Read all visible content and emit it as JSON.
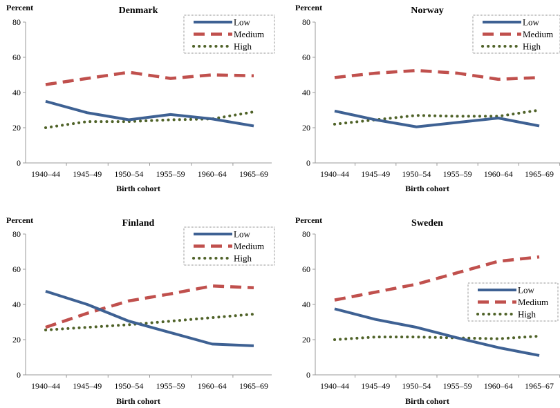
{
  "chart_data": [
    {
      "type": "line",
      "title": "Denmark",
      "ylabel": "Percent",
      "xlabel": "Birth cohort",
      "ylim": [
        0,
        80
      ],
      "yticks": [
        0,
        20,
        40,
        60,
        80
      ],
      "categories": [
        "1940–44",
        "1945–49",
        "1950–54",
        "1955–59",
        "1960–64",
        "1965–69"
      ],
      "legend_position": "top-right",
      "series": [
        {
          "name": "Low",
          "values": [
            35,
            28.5,
            24.5,
            27.5,
            25,
            21
          ]
        },
        {
          "name": "Medium",
          "values": [
            44.5,
            48,
            51.5,
            48,
            50,
            49.5
          ]
        },
        {
          "name": "High",
          "values": [
            20,
            23.5,
            23.5,
            24.5,
            25,
            29
          ]
        }
      ]
    },
    {
      "type": "line",
      "title": "Norway",
      "ylabel": "Percent",
      "xlabel": "Birth cohort",
      "ylim": [
        0,
        80
      ],
      "yticks": [
        0,
        20,
        40,
        60,
        80
      ],
      "categories": [
        "1940–44",
        "1945–49",
        "1950–54",
        "1955–59",
        "1960–64",
        "1965–69"
      ],
      "legend_position": "top-right",
      "series": [
        {
          "name": "Low",
          "values": [
            29.5,
            24.5,
            20.5,
            23,
            25.5,
            21
          ]
        },
        {
          "name": "Medium",
          "values": [
            48.5,
            51,
            52.5,
            51,
            47.5,
            48.5
          ]
        },
        {
          "name": "High",
          "values": [
            22,
            24.5,
            27,
            26.5,
            26.5,
            30
          ]
        }
      ]
    },
    {
      "type": "line",
      "title": "Finland",
      "ylabel": "Percent",
      "xlabel": "Birth cohort",
      "ylim": [
        0,
        80
      ],
      "yticks": [
        0,
        20,
        40,
        60,
        80
      ],
      "categories": [
        "1940–44",
        "1945–49",
        "1950–54",
        "1955–59",
        "1960–64",
        "1965–69"
      ],
      "legend_position": "top-right",
      "series": [
        {
          "name": "Low",
          "values": [
            47.5,
            40,
            30.5,
            24,
            17.5,
            16.5
          ]
        },
        {
          "name": "Medium",
          "values": [
            27,
            35,
            42,
            46,
            50.5,
            49.5
          ]
        },
        {
          "name": "High",
          "values": [
            25.5,
            27,
            28.5,
            30.5,
            32.5,
            34.5
          ]
        }
      ]
    },
    {
      "type": "line",
      "title": "Sweden",
      "ylabel": "Percent",
      "xlabel": "Birth cohort",
      "ylim": [
        0,
        80
      ],
      "yticks": [
        0,
        20,
        40,
        60,
        80
      ],
      "categories": [
        "1940–44",
        "1945–49",
        "1950–54",
        "1955–59",
        "1960–64",
        "1965–67"
      ],
      "legend_position": "right",
      "series": [
        {
          "name": "Low",
          "values": [
            37.5,
            31.5,
            27,
            21,
            15.5,
            11
          ]
        },
        {
          "name": "Medium",
          "values": [
            42.5,
            47,
            51.5,
            58,
            64.5,
            67
          ]
        },
        {
          "name": "High",
          "values": [
            20,
            21.5,
            21.5,
            21,
            20.5,
            22
          ]
        }
      ]
    }
  ],
  "colors": {
    "Low": "#3e6193",
    "Medium": "#c0504d",
    "High": "#4f6228",
    "axis": "#999999",
    "legend_border": "#888888"
  }
}
